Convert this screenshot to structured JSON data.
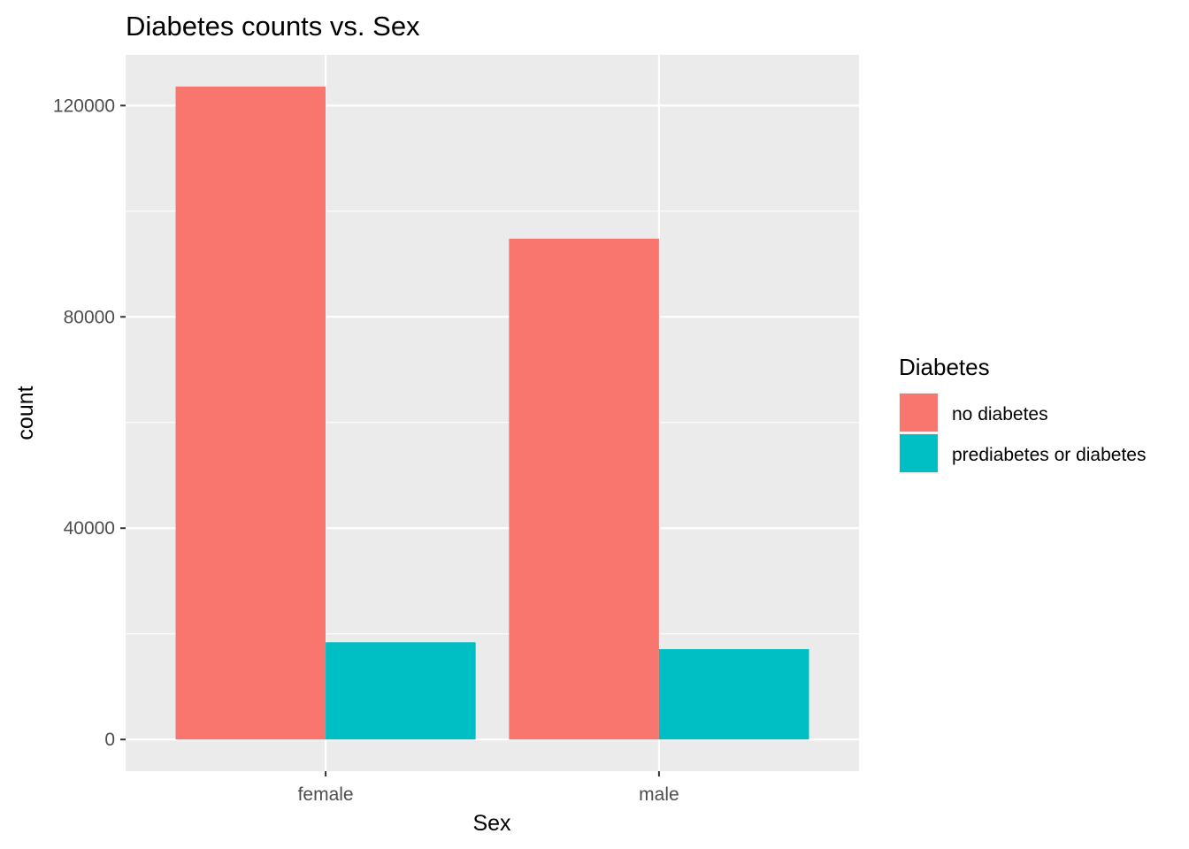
{
  "chart_data": {
    "type": "bar",
    "title": "Diabetes counts vs. Sex",
    "xlabel": "Sex",
    "ylabel": "count",
    "categories": [
      "female",
      "male"
    ],
    "series": [
      {
        "name": "no diabetes",
        "values": [
          123600,
          94800
        ],
        "color": "#F8766D"
      },
      {
        "name": "prediabetes or diabetes",
        "values": [
          18400,
          17100
        ],
        "color": "#00BFC4"
      }
    ],
    "ylim": [
      -6000,
      129600
    ],
    "yticks": [
      0,
      40000,
      80000,
      120000
    ],
    "ytick_labels": [
      "0",
      "40000",
      "80000",
      "120000"
    ],
    "grid": true,
    "legend": {
      "title": "Diabetes",
      "position": "right"
    },
    "panel_background": "#EBEBEB",
    "grid_color": "#FFFFFF"
  }
}
